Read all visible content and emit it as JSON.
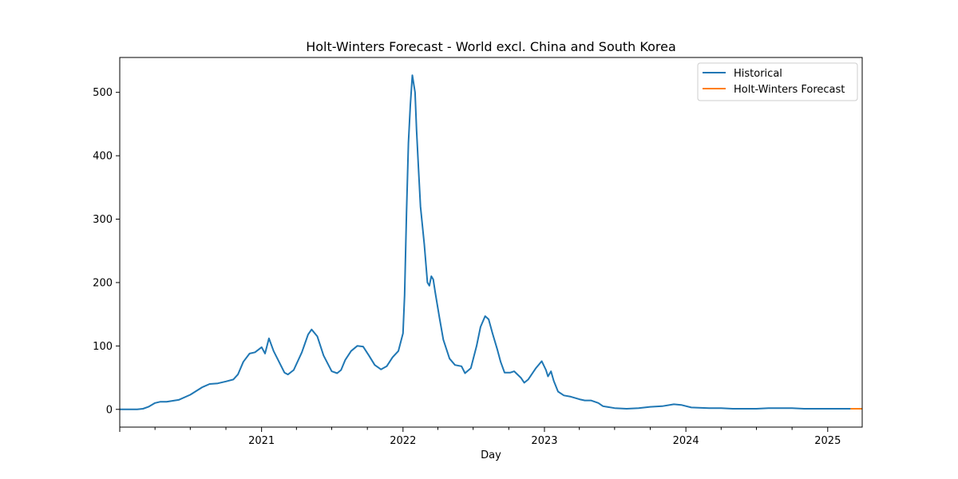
{
  "chart_data": {
    "type": "line",
    "title": "Holt-Winters Forecast - World excl. China and South Korea",
    "xlabel": "Day",
    "ylabel": "",
    "xlim": [
      "2020-01-01",
      "2025-03-31"
    ],
    "ylim": [
      -28,
      555
    ],
    "xticks": [
      "2021",
      "2022",
      "2023",
      "2024",
      "2025"
    ],
    "yticks": [
      0,
      100,
      200,
      300,
      400,
      500
    ],
    "grid": false,
    "legend_position": "top-right",
    "series": [
      {
        "name": "Historical",
        "color": "#1f77b4",
        "points": [
          [
            "2020-01-01",
            0
          ],
          [
            "2020-02-15",
            0
          ],
          [
            "2020-03-01",
            1
          ],
          [
            "2020-03-15",
            4
          ],
          [
            "2020-04-01",
            10
          ],
          [
            "2020-04-15",
            12
          ],
          [
            "2020-05-01",
            12
          ],
          [
            "2020-06-01",
            15
          ],
          [
            "2020-07-01",
            23
          ],
          [
            "2020-08-01",
            35
          ],
          [
            "2020-08-20",
            40
          ],
          [
            "2020-09-10",
            41
          ],
          [
            "2020-10-01",
            44
          ],
          [
            "2020-10-20",
            47
          ],
          [
            "2020-11-01",
            55
          ],
          [
            "2020-11-15",
            75
          ],
          [
            "2020-12-01",
            88
          ],
          [
            "2020-12-15",
            90
          ],
          [
            "2021-01-01",
            98
          ],
          [
            "2021-01-10",
            88
          ],
          [
            "2021-01-20",
            112
          ],
          [
            "2021-02-01",
            92
          ],
          [
            "2021-02-15",
            75
          ],
          [
            "2021-03-01",
            58
          ],
          [
            "2021-03-10",
            55
          ],
          [
            "2021-03-25",
            62
          ],
          [
            "2021-04-15",
            90
          ],
          [
            "2021-05-01",
            118
          ],
          [
            "2021-05-10",
            126
          ],
          [
            "2021-05-25",
            115
          ],
          [
            "2021-06-10",
            85
          ],
          [
            "2021-07-01",
            60
          ],
          [
            "2021-07-15",
            57
          ],
          [
            "2021-07-25",
            62
          ],
          [
            "2021-08-05",
            78
          ],
          [
            "2021-08-20",
            92
          ],
          [
            "2021-09-05",
            100
          ],
          [
            "2021-09-20",
            99
          ],
          [
            "2021-10-05",
            85
          ],
          [
            "2021-10-20",
            70
          ],
          [
            "2021-11-05",
            63
          ],
          [
            "2021-11-20",
            68
          ],
          [
            "2021-12-05",
            82
          ],
          [
            "2021-12-20",
            92
          ],
          [
            "2022-01-01",
            120
          ],
          [
            "2022-01-05",
            180
          ],
          [
            "2022-01-10",
            310
          ],
          [
            "2022-01-15",
            420
          ],
          [
            "2022-01-20",
            480
          ],
          [
            "2022-01-25",
            527
          ],
          [
            "2022-02-01",
            500
          ],
          [
            "2022-02-05",
            440
          ],
          [
            "2022-02-10",
            380
          ],
          [
            "2022-02-15",
            320
          ],
          [
            "2022-02-25",
            260
          ],
          [
            "2022-03-05",
            200
          ],
          [
            "2022-03-10",
            195
          ],
          [
            "2022-03-15",
            210
          ],
          [
            "2022-03-20",
            205
          ],
          [
            "2022-03-25",
            185
          ],
          [
            "2022-04-05",
            145
          ],
          [
            "2022-04-15",
            110
          ],
          [
            "2022-05-01",
            80
          ],
          [
            "2022-05-15",
            70
          ],
          [
            "2022-06-01",
            68
          ],
          [
            "2022-06-10",
            57
          ],
          [
            "2022-06-25",
            65
          ],
          [
            "2022-07-10",
            100
          ],
          [
            "2022-07-20",
            130
          ],
          [
            "2022-08-01",
            147
          ],
          [
            "2022-08-10",
            142
          ],
          [
            "2022-08-20",
            120
          ],
          [
            "2022-09-01",
            95
          ],
          [
            "2022-09-10",
            75
          ],
          [
            "2022-09-20",
            58
          ],
          [
            "2022-10-05",
            58
          ],
          [
            "2022-10-15",
            60
          ],
          [
            "2022-11-01",
            50
          ],
          [
            "2022-11-10",
            42
          ],
          [
            "2022-11-20",
            47
          ],
          [
            "2022-12-10",
            65
          ],
          [
            "2022-12-25",
            76
          ],
          [
            "2023-01-05",
            62
          ],
          [
            "2023-01-10",
            52
          ],
          [
            "2023-01-18",
            60
          ],
          [
            "2023-01-25",
            45
          ],
          [
            "2023-02-05",
            28
          ],
          [
            "2023-02-20",
            22
          ],
          [
            "2023-03-10",
            20
          ],
          [
            "2023-04-01",
            16
          ],
          [
            "2023-04-15",
            14
          ],
          [
            "2023-05-01",
            14
          ],
          [
            "2023-05-20",
            10
          ],
          [
            "2023-06-01",
            5
          ],
          [
            "2023-07-01",
            2
          ],
          [
            "2023-08-01",
            1
          ],
          [
            "2023-09-01",
            2
          ],
          [
            "2023-10-01",
            4
          ],
          [
            "2023-11-01",
            5
          ],
          [
            "2023-12-01",
            8
          ],
          [
            "2023-12-20",
            7
          ],
          [
            "2024-01-15",
            3
          ],
          [
            "2024-03-01",
            2
          ],
          [
            "2024-04-01",
            2
          ],
          [
            "2024-05-01",
            1
          ],
          [
            "2024-06-01",
            1
          ],
          [
            "2024-07-01",
            1
          ],
          [
            "2024-08-01",
            2
          ],
          [
            "2024-09-01",
            2
          ],
          [
            "2024-10-01",
            2
          ],
          [
            "2024-11-01",
            1
          ],
          [
            "2024-12-01",
            1
          ],
          [
            "2025-01-01",
            1
          ],
          [
            "2025-02-01",
            1
          ],
          [
            "2025-03-01",
            1
          ]
        ]
      },
      {
        "name": "Holt-Winters Forecast",
        "color": "#ff7f0e",
        "points": [
          [
            "2025-03-01",
            1
          ],
          [
            "2025-03-31",
            1
          ]
        ]
      }
    ]
  }
}
